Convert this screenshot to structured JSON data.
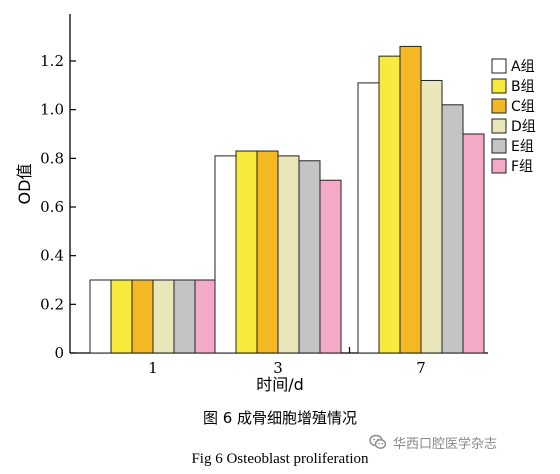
{
  "chart_data": {
    "type": "bar",
    "categories": [
      "1",
      "3",
      "7"
    ],
    "series": [
      {
        "name": "A组",
        "values": [
          0.3,
          0.81,
          1.11
        ]
      },
      {
        "name": "B组",
        "values": [
          0.3,
          0.83,
          1.22
        ]
      },
      {
        "name": "C组",
        "values": [
          0.3,
          0.83,
          1.26
        ]
      },
      {
        "name": "D组",
        "values": [
          0.3,
          0.81,
          1.12
        ]
      },
      {
        "name": "E组",
        "values": [
          0.3,
          0.79,
          1.02
        ]
      },
      {
        "name": "F组",
        "values": [
          0.3,
          0.71,
          0.9
        ]
      }
    ],
    "colors": [
      "#ffffff",
      "#f7ea3c",
      "#f3b824",
      "#e9e6ba",
      "#c4c4c4",
      "#f5a9c8"
    ],
    "xlabel": "时间/d",
    "ylabel": "OD值",
    "ylim": [
      0,
      1.3
    ],
    "yticks": [
      "0",
      "0.2",
      "0.4",
      "0.6",
      "0.8",
      "1.0",
      "1.2"
    ],
    "grid": false,
    "legend_position": "right"
  },
  "caption": {
    "chinese": "图 6   成骨细胞增殖情况",
    "english": "Fig 6   Osteoblast proliferation"
  },
  "watermark": {
    "text": "华西口腔医学杂志",
    "icon": "wechat-icon"
  }
}
